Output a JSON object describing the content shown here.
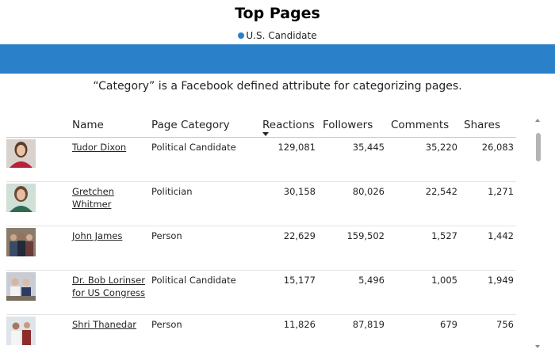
{
  "title": "Top Pages",
  "legend": {
    "label": "U.S. Candidate",
    "color": "#2a81c9"
  },
  "note": "“Category” is a Facebook defined attribute for categorizing pages.",
  "table": {
    "headers": {
      "name": "Name",
      "category": "Page Category",
      "reactions": "Reactions",
      "followers": "Followers",
      "comments": "Comments",
      "shares": "Shares"
    },
    "sort_column": "Reactions",
    "sort_direction": "descending",
    "rows": [
      {
        "name": "Tudor Dixon",
        "category": "Political Candidate",
        "reactions": "129,081",
        "followers": "35,445",
        "comments": "35,220",
        "shares": "26,083"
      },
      {
        "name": "Gretchen Whitmer",
        "category": "Politician",
        "reactions": "30,158",
        "followers": "80,026",
        "comments": "22,542",
        "shares": "1,271"
      },
      {
        "name": "John James",
        "category": "Person",
        "reactions": "22,629",
        "followers": "159,502",
        "comments": "1,527",
        "shares": "1,442"
      },
      {
        "name": "Dr. Bob Lorinser for US Congress",
        "category": "Political Candidate",
        "reactions": "15,177",
        "followers": "5,496",
        "comments": "1,005",
        "shares": "1,949"
      },
      {
        "name": "Shri Thanedar",
        "category": "Person",
        "reactions": "11,826",
        "followers": "87,819",
        "comments": "679",
        "shares": "756"
      }
    ]
  }
}
